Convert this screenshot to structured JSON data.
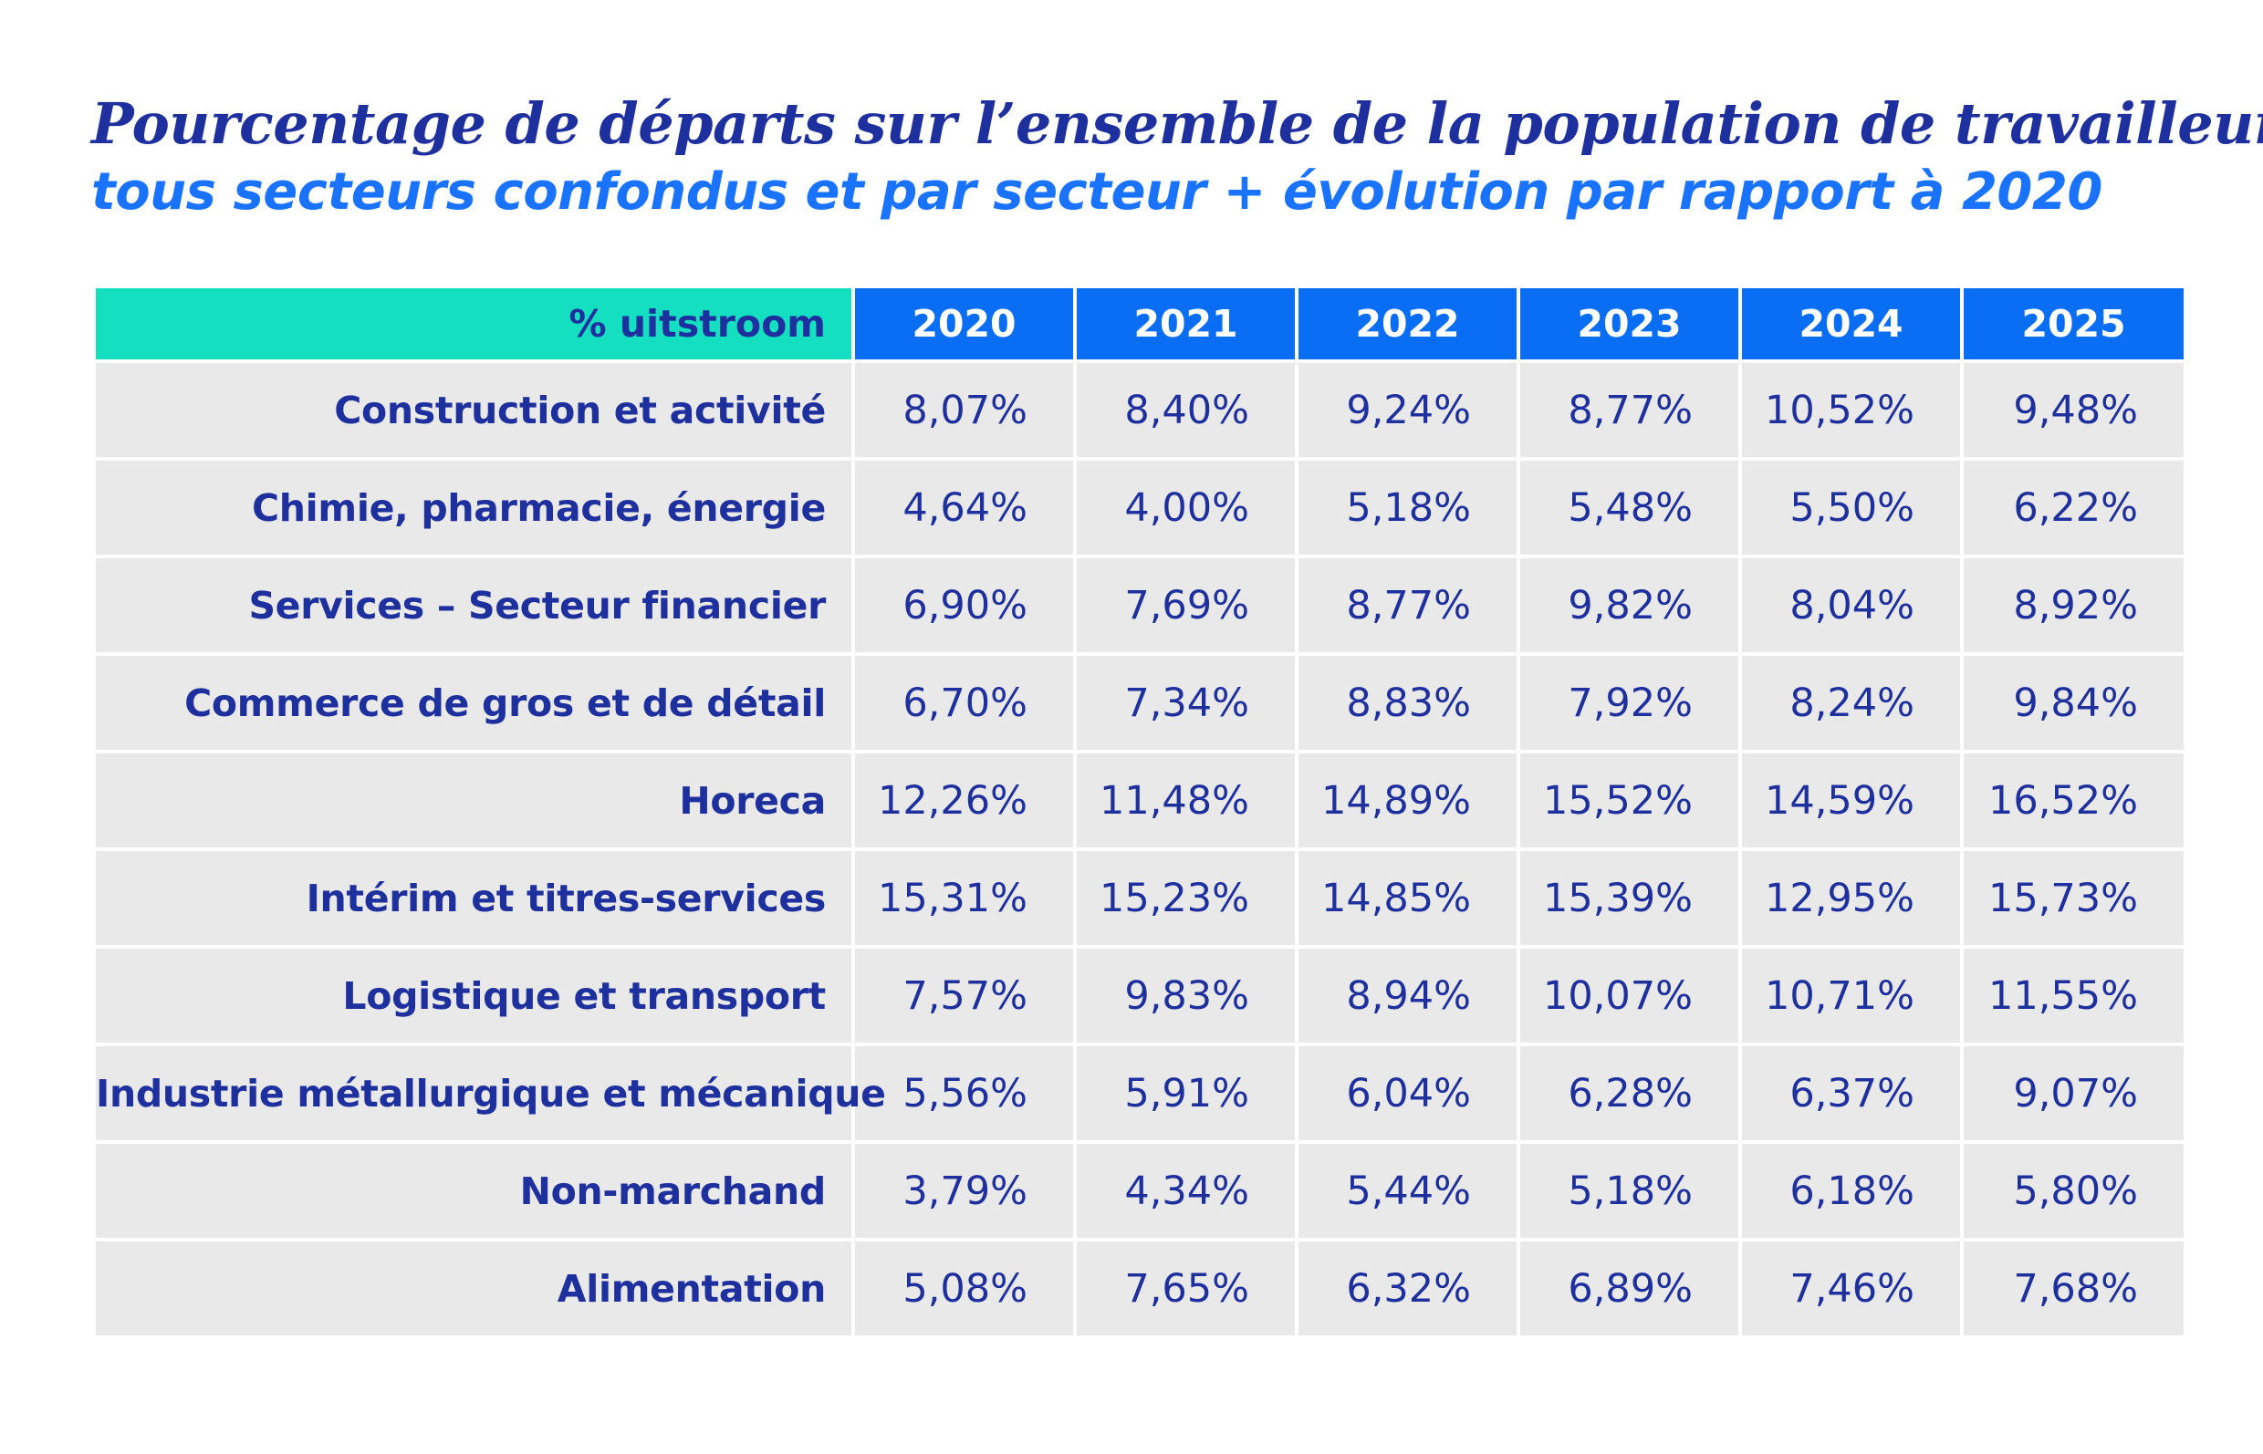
{
  "chart_data": {
    "type": "table",
    "title": "Pourcentage de départs sur l’ensemble de la population de travailleurs",
    "subtitle": "tous secteurs confondus et par secteur + évolution par rapport à 2020",
    "header_label": "% uitstroom",
    "columns": [
      "2020",
      "2021",
      "2022",
      "2023",
      "2024",
      "2025"
    ],
    "rows": [
      {
        "label": "Construction et activité",
        "values": [
          "8,07%",
          "8,40%",
          "9,24%",
          "8,77%",
          "10,52%",
          "9,48%"
        ]
      },
      {
        "label": "Chimie, pharmacie, énergie",
        "values": [
          "4,64%",
          "4,00%",
          "5,18%",
          "5,48%",
          "5,50%",
          "6,22%"
        ]
      },
      {
        "label": "Services – Secteur financier",
        "values": [
          "6,90%",
          "7,69%",
          "8,77%",
          "9,82%",
          "8,04%",
          "8,92%"
        ]
      },
      {
        "label": "Commerce de gros et de détail",
        "values": [
          "6,70%",
          "7,34%",
          "8,83%",
          "7,92%",
          "8,24%",
          "9,84%"
        ]
      },
      {
        "label": "Horeca",
        "values": [
          "12,26%",
          "11,48%",
          "14,89%",
          "15,52%",
          "14,59%",
          "16,52%"
        ]
      },
      {
        "label": "Intérim et titres-services",
        "values": [
          "15,31%",
          "15,23%",
          "14,85%",
          "15,39%",
          "12,95%",
          "15,73%"
        ]
      },
      {
        "label": "Logistique et transport",
        "values": [
          "7,57%",
          "9,83%",
          "8,94%",
          "10,07%",
          "10,71%",
          "11,55%"
        ]
      },
      {
        "label": "Industrie métallurgique et mécanique",
        "values": [
          "5,56%",
          "5,91%",
          "6,04%",
          "6,28%",
          "6,37%",
          "9,07%"
        ]
      },
      {
        "label": "Non-marchand",
        "values": [
          "3,79%",
          "4,34%",
          "5,44%",
          "5,18%",
          "6,18%",
          "5,80%"
        ]
      },
      {
        "label": "Alimentation",
        "values": [
          "5,08%",
          "7,65%",
          "6,32%",
          "6,89%",
          "7,46%",
          "7,68%"
        ]
      }
    ],
    "colors": {
      "title": "#1e2f9e",
      "subtitle": "#1a73ff",
      "header_year_bg": "#0a6ef5",
      "header_label_bg": "#14dfc0",
      "cell_bg": "#e9e9e9",
      "cell_text": "#1e2f9e"
    }
  }
}
